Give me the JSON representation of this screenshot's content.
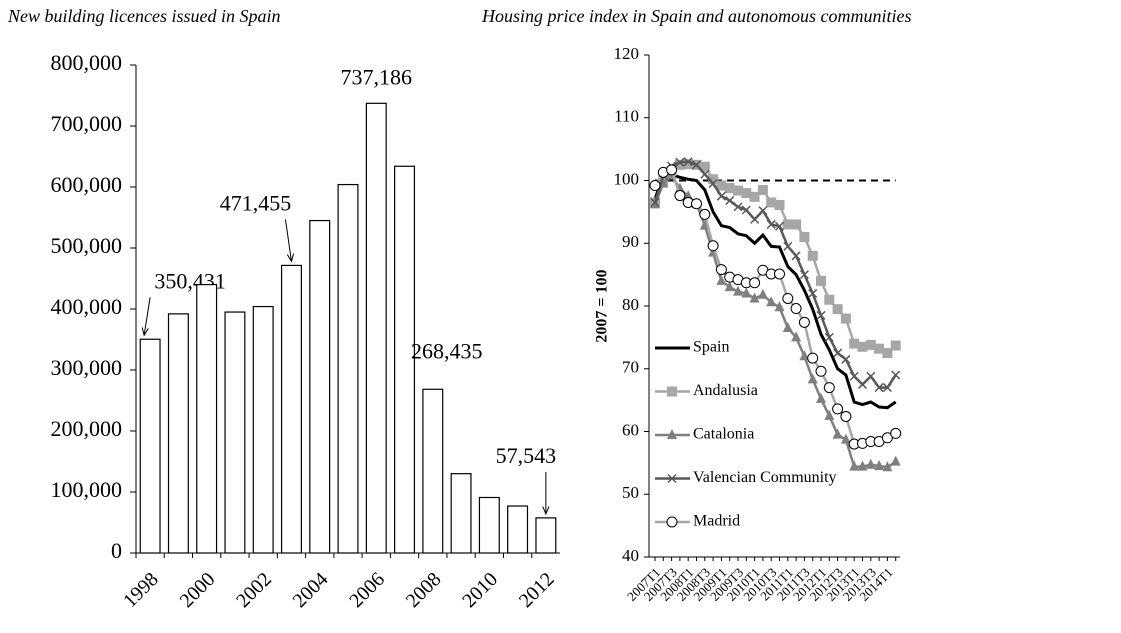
{
  "chart_data": [
    {
      "type": "bar",
      "title": "New building licences issued in Spain",
      "categories": [
        "1998",
        null,
        "2000",
        null,
        "2002",
        null,
        "2004",
        null,
        "2006",
        null,
        "2008",
        null,
        "2010",
        null,
        "2012"
      ],
      "values": [
        350431,
        392000,
        440000,
        395000,
        404000,
        471455,
        545000,
        604000,
        737186,
        634000,
        268435,
        130000,
        91000,
        77000,
        57543
      ],
      "value_labels": [
        "350,431",
        null,
        null,
        null,
        null,
        "471,455",
        null,
        null,
        "737,186",
        null,
        "268,435",
        null,
        null,
        null,
        "57,543"
      ],
      "color": "#ffffff",
      "ylim": [
        0,
        800000
      ],
      "yticks": [
        0,
        {
          "value": 100000,
          "label": "100,000"
        },
        {
          "value": 200000,
          "label": "200,000"
        },
        {
          "value": 300000,
          "label": "300,000"
        },
        {
          "value": 400000,
          "label": "400,000"
        },
        {
          "value": 500000,
          "label": "500,000"
        },
        {
          "value": 600000,
          "label": "600,000"
        },
        {
          "value": 700000,
          "label": "700,000"
        },
        {
          "value": 800000,
          "label": "800,000"
        }
      ]
    },
    {
      "type": "line",
      "title": "Housing price index in Spain and autonomous communities",
      "y_label": "2007 = 100",
      "categories": [
        "2007T1",
        null,
        "2007T3",
        null,
        "2008T1",
        null,
        "2008T3",
        null,
        "2009T1",
        null,
        "2009T3",
        null,
        "2010T1",
        null,
        "2010T3",
        null,
        "2011T1",
        null,
        "2011T3",
        null,
        "2012T1",
        null,
        "2012T3",
        null,
        "2013T1",
        null,
        "2013T3",
        null,
        "2014T1",
        null
      ],
      "reference_line": 100,
      "legend_position": "lower left",
      "ylim": [
        40,
        120
      ],
      "yticks": [
        40,
        50,
        60,
        70,
        80,
        90,
        100,
        110,
        120
      ],
      "series": [
        {
          "name": "Spain",
          "color": "#000000",
          "marker": "none",
          "values": [
            97,
            101,
            101,
            100.5,
            100.2,
            100,
            98.5,
            95,
            92.8,
            92.5,
            91.5,
            91.2,
            90,
            91.3,
            89.5,
            89.4,
            86.3,
            85,
            82.5,
            79.5,
            75.5,
            73,
            70,
            69,
            64.7,
            64.3,
            64.7,
            63.9,
            63.8,
            64.7
          ]
        },
        {
          "name": "Andalusia",
          "color": "#a6a6a6",
          "marker": "square",
          "values": [
            96.5,
            100,
            101.5,
            102.5,
            102.6,
            102.5,
            102.2,
            100.2,
            99.2,
            98.8,
            98.4,
            98,
            97.4,
            98.5,
            96.5,
            96.1,
            93,
            93,
            91,
            88,
            84,
            81,
            79.5,
            78,
            74,
            73.5,
            73.8,
            73.2,
            72.5,
            73.7
          ]
        },
        {
          "name": "Catalonia",
          "color": "#7f7f7f",
          "marker": "triangle",
          "values": [
            96.2,
            99.5,
            100.8,
            98.7,
            97.5,
            96.3,
            92.8,
            88.5,
            84,
            83,
            82.3,
            82,
            81.2,
            81.8,
            80.6,
            79.8,
            76.5,
            75,
            72,
            68.3,
            65.2,
            62.5,
            59.5,
            58.7,
            54.4,
            54.4,
            54.7,
            54.5,
            54.3,
            55.2
          ]
        },
        {
          "name": "Valencian Community",
          "color": "#595959",
          "marker": "x",
          "values": [
            96.5,
            100.8,
            102.3,
            102.9,
            103,
            102.5,
            101,
            99.5,
            97.5,
            96.8,
            95.8,
            95.3,
            93.8,
            95.2,
            93,
            92.7,
            89.5,
            88,
            85,
            82,
            78.5,
            75,
            72.5,
            71.5,
            68.8,
            67.5,
            68.8,
            67,
            67,
            69
          ]
        },
        {
          "name": "Madrid",
          "color": "#a6a6a6",
          "marker": "circle",
          "values": [
            99.2,
            101.3,
            101.7,
            97.6,
            96.5,
            96.3,
            94.6,
            89.6,
            85.8,
            84.6,
            84.2,
            83.7,
            83.7,
            85.7,
            85.1,
            85.1,
            81.2,
            79.6,
            77.4,
            71.7,
            69.6,
            67,
            63.6,
            62.4,
            58,
            58.1,
            58.4,
            58.4,
            59,
            59.7
          ]
        }
      ]
    }
  ]
}
